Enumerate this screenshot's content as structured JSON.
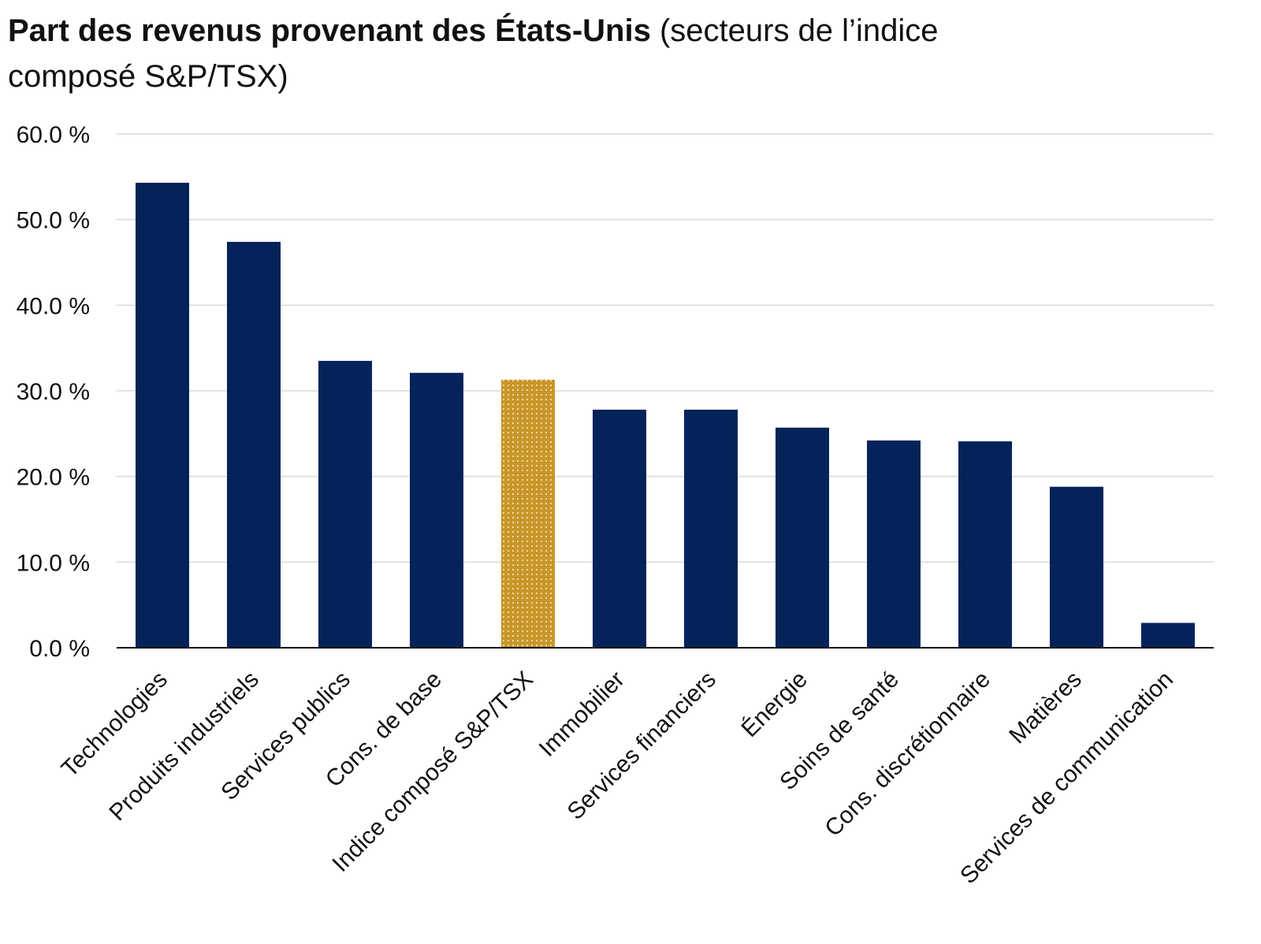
{
  "chart_data": {
    "type": "bar",
    "title_bold": "Part des revenus provenant des États-Unis",
    "title_normal": "(secteurs de l’indice composé S&P/TSX)",
    "categories": [
      "Technologies",
      "Produits industriels",
      "Services publics",
      "Cons. de base",
      "Indice composé S&P/TSX",
      "Immobilier",
      "Services financiers",
      "Énergie",
      "Soins de santé",
      "Cons. discrétionnaire",
      "Matières",
      "Services de communication"
    ],
    "values": [
      54.3,
      47.4,
      33.5,
      32.1,
      31.3,
      27.8,
      27.8,
      25.7,
      24.2,
      24.1,
      18.8,
      2.9
    ],
    "highlight_index": 4,
    "ylim": [
      0,
      60
    ],
    "yticks": [
      0,
      10,
      20,
      30,
      40,
      50,
      60
    ],
    "ytick_labels": [
      "0.0 %",
      "10.0 %",
      "20.0 %",
      "30.0 %",
      "40.0 %",
      "50.0 %",
      "60.0 %"
    ],
    "xlabel": "",
    "ylabel": "",
    "grid": true,
    "legend": "none",
    "colors": {
      "bar": "#03235a",
      "highlight": "#c8962a",
      "highlight_dots": "#f3dfa6",
      "grid": "#d9d9d9",
      "axis": "#000000"
    }
  }
}
